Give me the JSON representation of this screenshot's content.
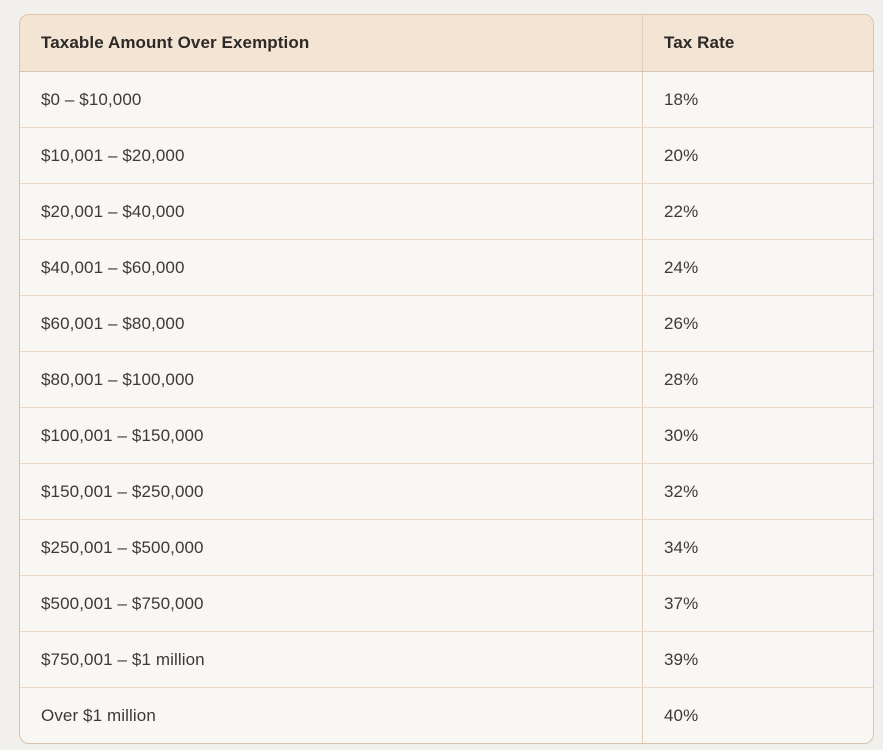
{
  "table": {
    "columns": [
      {
        "label": "Taxable Amount Over Exemption"
      },
      {
        "label": "Tax Rate"
      }
    ],
    "rows": [
      {
        "amount": "$0 – $10,000",
        "rate": "18%"
      },
      {
        "amount": "$10,001 – $20,000",
        "rate": "20%"
      },
      {
        "amount": "$20,001 – $40,000",
        "rate": "22%"
      },
      {
        "amount": "$40,001 – $60,000",
        "rate": "24%"
      },
      {
        "amount": "$60,001 – $80,000",
        "rate": "26%"
      },
      {
        "amount": "$80,001 – $100,000",
        "rate": "28%"
      },
      {
        "amount": "$100,001 – $150,000",
        "rate": "30%"
      },
      {
        "amount": "$150,001 – $250,000",
        "rate": "32%"
      },
      {
        "amount": "$250,001 – $500,000",
        "rate": "34%"
      },
      {
        "amount": "$500,001 – $750,000",
        "rate": "37%"
      },
      {
        "amount": "$750,001 – $1 million",
        "rate": "39%"
      },
      {
        "amount": "Over $1 million",
        "rate": "40%"
      }
    ],
    "colors": {
      "page_background": "#f2f0ed",
      "header_background": "#f3e4d3",
      "row_background": "#f9f7f4",
      "outer_border": "#d8c3ad",
      "row_separator": "#e9d9c8",
      "column_divider": "#e0cfbd",
      "header_text": "#2c2926",
      "body_text": "#3c3a37"
    }
  }
}
